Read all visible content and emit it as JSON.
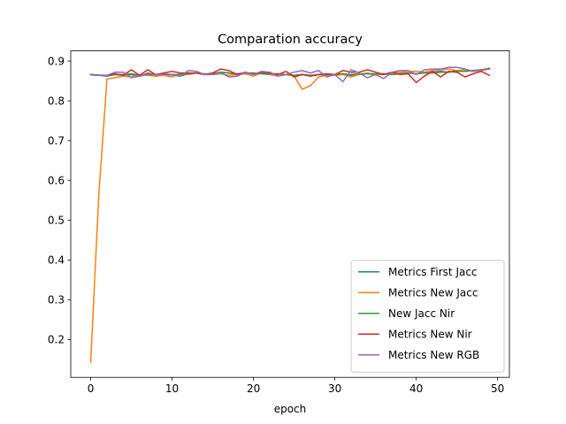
{
  "chart_data": {
    "type": "line",
    "title": "Comparation accuracy",
    "xlabel": "epoch",
    "ylabel": "",
    "xlim": [
      -2.45,
      51.45
    ],
    "ylim": [
      0.105,
      0.9255
    ],
    "xticks": [
      0,
      10,
      20,
      30,
      40,
      50
    ],
    "yticks": [
      0.2,
      0.3,
      0.4,
      0.5,
      0.6,
      0.7,
      0.8,
      0.9
    ],
    "grid": false,
    "legend_position": "lower-right",
    "series": [
      {
        "name": "Metrics First Jacc",
        "color": "#1f77b4",
        "values": [
          0.865,
          0.864,
          0.862,
          0.866,
          0.864,
          0.866,
          0.862,
          0.866,
          0.864,
          0.866,
          0.865,
          0.862,
          0.868,
          0.87,
          0.866,
          0.868,
          0.872,
          0.87,
          0.866,
          0.868,
          0.87,
          0.868,
          0.866,
          0.868,
          0.866,
          0.864,
          0.866,
          0.862,
          0.866,
          0.864,
          0.866,
          0.868,
          0.864,
          0.866,
          0.868,
          0.866,
          0.868,
          0.866,
          0.868,
          0.87,
          0.868,
          0.87,
          0.872,
          0.874,
          0.872,
          0.876,
          0.874,
          0.876,
          0.878,
          0.88
        ]
      },
      {
        "name": "Metrics New Jacc",
        "color": "#ff7f0e",
        "values": [
          0.143,
          0.565,
          0.855,
          0.858,
          0.862,
          0.86,
          0.865,
          0.864,
          0.862,
          0.864,
          0.86,
          0.868,
          0.866,
          0.87,
          0.866,
          0.866,
          0.868,
          0.864,
          0.866,
          0.868,
          0.862,
          0.87,
          0.866,
          0.862,
          0.866,
          0.862,
          0.829,
          0.838,
          0.86,
          0.864,
          0.864,
          0.866,
          0.86,
          0.866,
          0.87,
          0.866,
          0.866,
          0.87,
          0.872,
          0.874,
          0.874,
          0.872,
          0.876,
          0.878,
          0.88,
          0.876,
          0.878,
          0.874,
          0.876,
          0.88
        ]
      },
      {
        "name": "New Jacc Nir",
        "color": "#2ca02c",
        "values": [
          0.866,
          0.865,
          0.864,
          0.866,
          0.866,
          0.868,
          0.864,
          0.866,
          0.866,
          0.868,
          0.866,
          0.866,
          0.868,
          0.87,
          0.868,
          0.868,
          0.872,
          0.87,
          0.868,
          0.87,
          0.87,
          0.868,
          0.868,
          0.868,
          0.866,
          0.864,
          0.866,
          0.864,
          0.866,
          0.866,
          0.866,
          0.868,
          0.866,
          0.868,
          0.868,
          0.868,
          0.868,
          0.866,
          0.868,
          0.87,
          0.868,
          0.87,
          0.87,
          0.872,
          0.872,
          0.874,
          0.874,
          0.876,
          0.878,
          0.88
        ]
      },
      {
        "name": "Metrics New Nir",
        "color": "#d62728",
        "values": [
          0.866,
          0.864,
          0.864,
          0.868,
          0.864,
          0.878,
          0.864,
          0.878,
          0.866,
          0.87,
          0.874,
          0.87,
          0.87,
          0.87,
          0.866,
          0.87,
          0.88,
          0.876,
          0.866,
          0.872,
          0.866,
          0.872,
          0.87,
          0.866,
          0.874,
          0.86,
          0.866,
          0.862,
          0.866,
          0.868,
          0.866,
          0.876,
          0.872,
          0.872,
          0.878,
          0.872,
          0.866,
          0.872,
          0.866,
          0.868,
          0.846,
          0.862,
          0.874,
          0.86,
          0.874,
          0.872,
          0.86,
          0.868,
          0.874,
          0.864
        ]
      },
      {
        "name": "Metrics New RGB",
        "color": "#9467bd",
        "values": [
          0.866,
          0.864,
          0.864,
          0.872,
          0.872,
          0.858,
          0.862,
          0.87,
          0.866,
          0.866,
          0.866,
          0.862,
          0.876,
          0.874,
          0.866,
          0.866,
          0.87,
          0.86,
          0.862,
          0.872,
          0.866,
          0.874,
          0.872,
          0.862,
          0.866,
          0.872,
          0.876,
          0.87,
          0.876,
          0.86,
          0.866,
          0.848,
          0.878,
          0.87,
          0.858,
          0.866,
          0.856,
          0.872,
          0.876,
          0.876,
          0.866,
          0.878,
          0.88,
          0.88,
          0.884,
          0.884,
          0.88,
          0.874,
          0.878,
          0.882
        ]
      }
    ]
  }
}
